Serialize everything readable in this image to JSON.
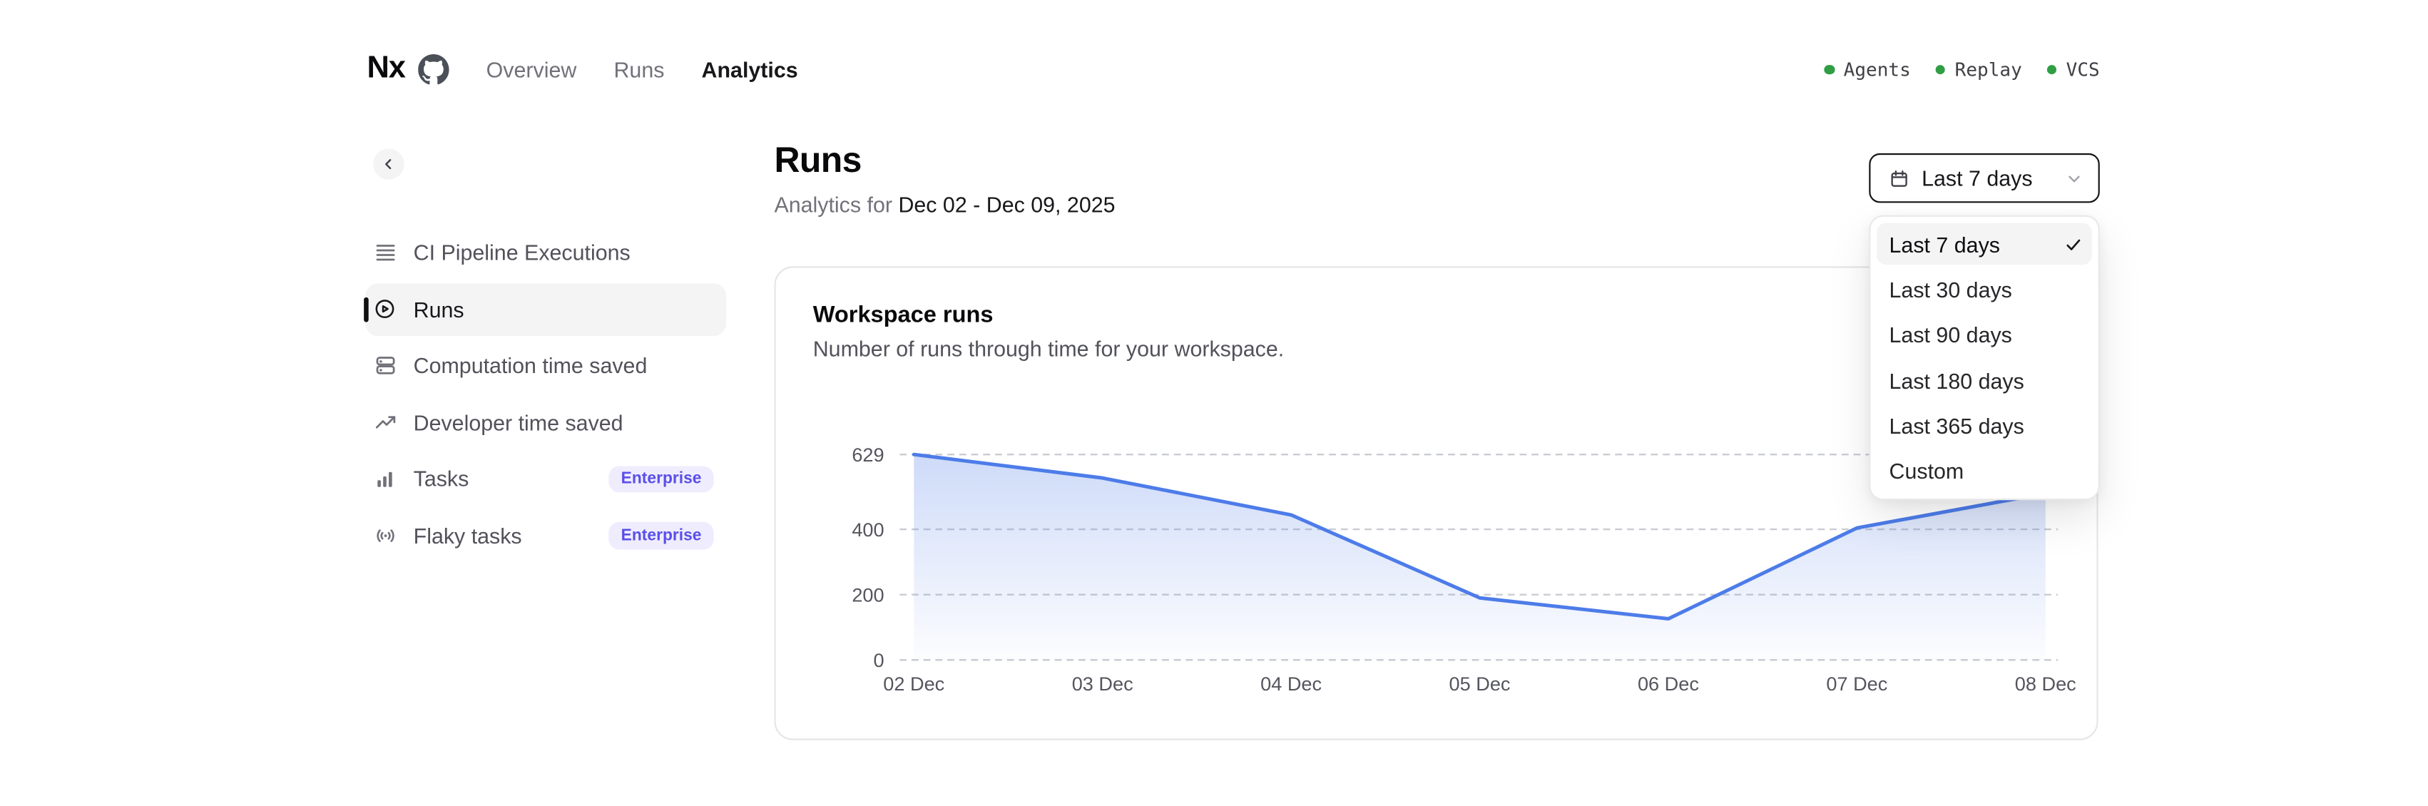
{
  "brand": {
    "logo_text": "Nx"
  },
  "nav": {
    "links": [
      {
        "label": "Overview",
        "active": false
      },
      {
        "label": "Runs",
        "active": false
      },
      {
        "label": "Analytics",
        "active": true
      }
    ]
  },
  "statuses": [
    {
      "label": "Agents",
      "state": "up"
    },
    {
      "label": "Replay",
      "state": "up"
    },
    {
      "label": "VCS",
      "state": "up"
    }
  ],
  "sidebar": {
    "items": [
      {
        "label": "CI Pipeline Executions",
        "icon": "queue-list-icon",
        "selected": false,
        "badge": ""
      },
      {
        "label": "Runs",
        "icon": "play-circle-icon",
        "selected": true,
        "badge": ""
      },
      {
        "label": "Computation time saved",
        "icon": "server-stack-icon",
        "selected": false,
        "badge": ""
      },
      {
        "label": "Developer time saved",
        "icon": "trending-up-icon",
        "selected": false,
        "badge": ""
      },
      {
        "label": "Tasks",
        "icon": "bar-chart-icon",
        "selected": false,
        "badge": "Enterprise"
      },
      {
        "label": "Flaky tasks",
        "icon": "signal-icon",
        "selected": false,
        "badge": "Enterprise"
      }
    ]
  },
  "page": {
    "title": "Runs",
    "subtitle_prefix": "Analytics for",
    "subtitle_range": "Dec 02 - Dec 09, 2025"
  },
  "date_filter": {
    "button_label": "Last 7 days",
    "menu_items": [
      {
        "label": "Last 7 days",
        "checked": true
      },
      {
        "label": "Last 30 days",
        "checked": false
      },
      {
        "label": "Last 90 days",
        "checked": false
      },
      {
        "label": "Last 180 days",
        "checked": false
      },
      {
        "label": "Last 365 days",
        "checked": false
      },
      {
        "label": "Custom",
        "checked": false
      }
    ]
  },
  "card": {
    "title": "Workspace runs",
    "subtitle": "Number of runs through time for your workspace."
  },
  "chart_data": {
    "type": "area",
    "title": "Workspace runs",
    "x": [
      "02 Dec",
      "03 Dec",
      "04 Dec",
      "05 Dec",
      "06 Dec",
      "07 Dec",
      "08 Dec"
    ],
    "series": [
      {
        "name": "Workspace runs",
        "values": [
          629,
          557,
          444,
          190,
          126,
          404,
          510
        ]
      }
    ],
    "yticks": [
      0,
      200,
      400,
      629
    ],
    "ylim": [
      0,
      629
    ],
    "xlabel": "",
    "ylabel": "",
    "grid": "dashed-horizontal",
    "legend": false,
    "line_color": "#4d7ce9",
    "area_gradient_top": "rgba(93,134,233,0.30)",
    "area_gradient_bottom": "rgba(93,134,233,0.02)",
    "gridline_color": "#c9ccd2",
    "axis_label_color": "#55555e"
  },
  "colors": {
    "accent_blue": "#4d7ce9",
    "status_green": "#2f9e44",
    "badge_purple": "#5b4fe9",
    "badge_bg": "#efedfd",
    "selected_bg": "#f4f4f5",
    "border": "#e6e6e9",
    "text_dark": "#18181b",
    "text_gray": "#71717a"
  }
}
